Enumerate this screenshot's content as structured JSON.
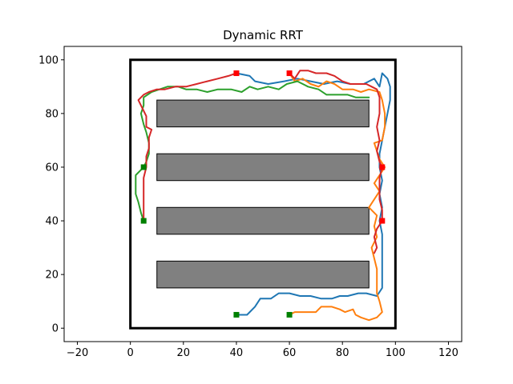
{
  "chart_data": {
    "type": "line",
    "title": "Dynamic RRT",
    "xlabel": "",
    "ylabel": "",
    "xlim": [
      -25,
      125
    ],
    "ylim": [
      -5,
      105
    ],
    "xticks": [
      -20,
      0,
      20,
      40,
      60,
      80,
      100,
      120
    ],
    "yticks": [
      0,
      20,
      40,
      60,
      80,
      100
    ],
    "xtick_labels": [
      "−20",
      "0",
      "20",
      "40",
      "60",
      "80",
      "100",
      "120"
    ],
    "ytick_labels": [
      "0",
      "20",
      "40",
      "60",
      "80",
      "100"
    ],
    "grid": false,
    "boundary": {
      "x": [
        0,
        100
      ],
      "y": [
        0,
        100
      ],
      "color": "#000000"
    },
    "obstacles": [
      {
        "x0": 10,
        "y0": 75,
        "x1": 90,
        "y1": 85
      },
      {
        "x0": 10,
        "y0": 55,
        "x1": 90,
        "y1": 65
      },
      {
        "x0": 10,
        "y0": 35,
        "x1": 90,
        "y1": 45
      },
      {
        "x0": 10,
        "y0": 15,
        "x1": 90,
        "y1": 25
      }
    ],
    "obstacle_color": "#808080",
    "series": [
      {
        "color": "#1f77b4",
        "points": [
          [
            40,
            5
          ],
          [
            44,
            5
          ],
          [
            47,
            8
          ],
          [
            49,
            11
          ],
          [
            53,
            11
          ],
          [
            56,
            13
          ],
          [
            60,
            13
          ],
          [
            64,
            12
          ],
          [
            68,
            12
          ],
          [
            72,
            11
          ],
          [
            76,
            11
          ],
          [
            79,
            12
          ],
          [
            82,
            12
          ],
          [
            86,
            13
          ],
          [
            89,
            13
          ],
          [
            93,
            12
          ],
          [
            95,
            15
          ],
          [
            95,
            20
          ],
          [
            95,
            25
          ],
          [
            95,
            30
          ],
          [
            95,
            35
          ],
          [
            94,
            40
          ],
          [
            95,
            45
          ],
          [
            94,
            50
          ],
          [
            95,
            55
          ],
          [
            94,
            60
          ],
          [
            94,
            65
          ],
          [
            95,
            70
          ],
          [
            96,
            75
          ],
          [
            97,
            80
          ],
          [
            98,
            85
          ],
          [
            98,
            90
          ],
          [
            97,
            93
          ],
          [
            95,
            95
          ],
          [
            94,
            90
          ],
          [
            92,
            93
          ],
          [
            88,
            91
          ],
          [
            83,
            91
          ],
          [
            78,
            92
          ],
          [
            73,
            91
          ],
          [
            68,
            92
          ],
          [
            63,
            93
          ],
          [
            58,
            92
          ],
          [
            52,
            91
          ],
          [
            47,
            92
          ],
          [
            45,
            94
          ],
          [
            40,
            95
          ]
        ]
      },
      {
        "color": "#ff7f0e",
        "points": [
          [
            60,
            5
          ],
          [
            62,
            6
          ],
          [
            66,
            6
          ],
          [
            70,
            6
          ],
          [
            72,
            8
          ],
          [
            76,
            8
          ],
          [
            79,
            7
          ],
          [
            81,
            6
          ],
          [
            84,
            7
          ],
          [
            85,
            5
          ],
          [
            87,
            4
          ],
          [
            90,
            3
          ],
          [
            93,
            4
          ],
          [
            95,
            6
          ],
          [
            94,
            10
          ],
          [
            93,
            13
          ],
          [
            93,
            17
          ],
          [
            93,
            22
          ],
          [
            92,
            26
          ],
          [
            91,
            30
          ],
          [
            93,
            34
          ],
          [
            92,
            38
          ],
          [
            93,
            42
          ],
          [
            90,
            45
          ],
          [
            92,
            48
          ],
          [
            94,
            51
          ],
          [
            92,
            54
          ],
          [
            94,
            57
          ],
          [
            96,
            60
          ],
          [
            94,
            63
          ],
          [
            93,
            66
          ],
          [
            92,
            69
          ],
          [
            95,
            70
          ],
          [
            96,
            75
          ],
          [
            96,
            80
          ],
          [
            95,
            85
          ],
          [
            94,
            88
          ],
          [
            90,
            89
          ],
          [
            87,
            88
          ],
          [
            84,
            89
          ],
          [
            80,
            89
          ],
          [
            77,
            91
          ],
          [
            74,
            92
          ],
          [
            71,
            90
          ],
          [
            68,
            91
          ],
          [
            65,
            93
          ],
          [
            62,
            92
          ],
          [
            60,
            95
          ]
        ]
      },
      {
        "color": "#2ca02c",
        "points": [
          [
            5,
            40
          ],
          [
            4,
            43
          ],
          [
            3,
            47
          ],
          [
            2,
            50
          ],
          [
            2,
            53
          ],
          [
            2,
            57
          ],
          [
            4,
            59
          ],
          [
            5,
            60
          ],
          [
            6,
            62
          ],
          [
            7,
            65
          ],
          [
            7,
            69
          ],
          [
            6,
            73
          ],
          [
            5,
            76
          ],
          [
            4,
            80
          ],
          [
            5,
            83
          ],
          [
            5,
            86
          ],
          [
            8,
            88
          ],
          [
            11,
            89
          ],
          [
            14,
            90
          ],
          [
            18,
            90
          ],
          [
            21,
            89
          ],
          [
            25,
            89
          ],
          [
            29,
            88
          ],
          [
            33,
            89
          ],
          [
            38,
            89
          ],
          [
            42,
            88
          ],
          [
            45,
            90
          ],
          [
            48,
            89
          ],
          [
            52,
            90
          ],
          [
            56,
            89
          ],
          [
            59,
            91
          ],
          [
            63,
            92
          ],
          [
            67,
            90
          ],
          [
            71,
            89
          ],
          [
            74,
            87
          ],
          [
            78,
            87
          ],
          [
            82,
            87
          ],
          [
            85,
            86
          ],
          [
            88,
            86
          ],
          [
            90,
            86
          ]
        ]
      },
      {
        "color": "#d62728",
        "points": [
          [
            60,
            95
          ],
          [
            62,
            93
          ],
          [
            64,
            96
          ],
          [
            67,
            96
          ],
          [
            70,
            95
          ],
          [
            74,
            95
          ],
          [
            77,
            94
          ],
          [
            80,
            92
          ],
          [
            83,
            91
          ],
          [
            86,
            91
          ],
          [
            89,
            91
          ],
          [
            91,
            90
          ],
          [
            93,
            89
          ],
          [
            94,
            86
          ],
          [
            94,
            80
          ],
          [
            93,
            75
          ],
          [
            94,
            70
          ],
          [
            93,
            66
          ],
          [
            94,
            62
          ],
          [
            95,
            60
          ],
          [
            94,
            56
          ],
          [
            94,
            52
          ],
          [
            94,
            48
          ],
          [
            95,
            44
          ],
          [
            95,
            40
          ],
          [
            93,
            37
          ],
          [
            92,
            34
          ],
          [
            93,
            30
          ],
          [
            92,
            28
          ]
        ]
      },
      {
        "color": "#d62728",
        "points": [
          [
            40,
            95
          ],
          [
            37,
            94
          ],
          [
            33,
            93
          ],
          [
            29,
            92
          ],
          [
            25,
            91
          ],
          [
            21,
            90
          ],
          [
            17,
            90
          ],
          [
            13,
            89
          ],
          [
            10,
            89
          ],
          [
            7,
            88
          ],
          [
            5,
            87
          ],
          [
            3,
            85
          ],
          [
            4,
            83
          ],
          [
            5,
            81
          ],
          [
            6,
            79
          ],
          [
            6,
            75
          ],
          [
            8,
            74
          ],
          [
            7,
            71
          ],
          [
            7,
            67
          ],
          [
            6,
            64
          ],
          [
            6,
            60
          ],
          [
            5,
            56
          ],
          [
            5,
            52
          ],
          [
            5,
            48
          ],
          [
            5,
            44
          ],
          [
            5,
            40
          ]
        ]
      }
    ],
    "start_points": {
      "color": "#008000",
      "points": [
        [
          40,
          5
        ],
        [
          60,
          5
        ],
        [
          5,
          60
        ],
        [
          5,
          40
        ]
      ]
    },
    "goal_points": {
      "color": "#ff0000",
      "points": [
        [
          40,
          95
        ],
        [
          60,
          95
        ],
        [
          95,
          60
        ],
        [
          95,
          40
        ]
      ]
    }
  }
}
